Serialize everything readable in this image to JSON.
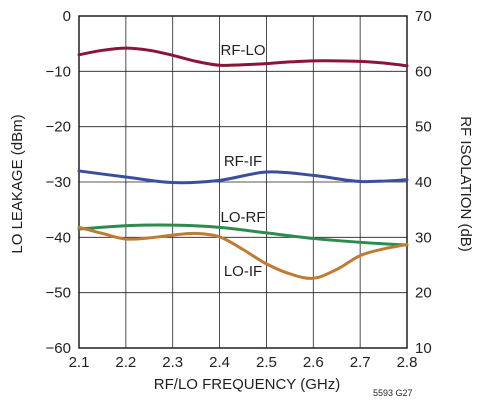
{
  "chart_data": {
    "type": "line",
    "title": "",
    "xlabel": "RF/LO FREQUENCY (GHz)",
    "ylabel_left": "LO LEAKAGE (dBm)",
    "ylabel_right": "RF ISOLATION (dB)",
    "figure_code": "5593 G27",
    "xlim": [
      2.1,
      2.8
    ],
    "x_ticks": [
      2.1,
      2.2,
      2.3,
      2.4,
      2.5,
      2.6,
      2.7,
      2.8
    ],
    "x_tick_labels": [
      "2.1",
      "2.2",
      "2.3",
      "2.4",
      "2.5",
      "2.6",
      "2.7",
      "2.8"
    ],
    "ylim_left": [
      -60,
      0
    ],
    "y_left_ticks": [
      0,
      -10,
      -20,
      -30,
      -40,
      -50,
      -60
    ],
    "y_left_tick_labels": [
      "0",
      "−10",
      "−20",
      "−30",
      "−40",
      "−50",
      "−60"
    ],
    "ylim_right": [
      10,
      70
    ],
    "y_right_ticks": [
      70,
      60,
      50,
      40,
      30,
      20,
      10
    ],
    "y_right_tick_labels": [
      "70",
      "60",
      "50",
      "40",
      "30",
      "20",
      "10"
    ],
    "grid": true,
    "series": [
      {
        "name": "RF-LO",
        "axis": "right",
        "color": "#8b1538",
        "x": [
          2.1,
          2.15,
          2.2,
          2.25,
          2.3,
          2.35,
          2.4,
          2.45,
          2.5,
          2.55,
          2.6,
          2.65,
          2.7,
          2.75,
          2.8
        ],
        "y": [
          63.0,
          63.8,
          64.2,
          63.8,
          62.9,
          61.8,
          61.1,
          61.2,
          61.4,
          61.7,
          61.9,
          61.9,
          61.8,
          61.5,
          61.0
        ]
      },
      {
        "name": "RF-IF",
        "axis": "right",
        "color": "#3a4ea0",
        "x": [
          2.1,
          2.2,
          2.3,
          2.4,
          2.5,
          2.6,
          2.7,
          2.8
        ],
        "y": [
          42.0,
          40.9,
          39.9,
          40.3,
          41.8,
          41.2,
          40.1,
          40.4
        ]
      },
      {
        "name": "LO-RF",
        "axis": "left",
        "color": "#2e8b4e",
        "x": [
          2.1,
          2.2,
          2.3,
          2.4,
          2.5,
          2.6,
          2.7,
          2.8
        ],
        "y": [
          -38.5,
          -37.9,
          -37.8,
          -38.2,
          -39.2,
          -40.2,
          -40.9,
          -41.4
        ]
      },
      {
        "name": "LO-IF",
        "axis": "left",
        "color": "#c07b33",
        "x": [
          2.1,
          2.15,
          2.2,
          2.25,
          2.3,
          2.35,
          2.4,
          2.45,
          2.5,
          2.55,
          2.6,
          2.65,
          2.7,
          2.75,
          2.8
        ],
        "y": [
          -38.2,
          -39.3,
          -40.3,
          -40.1,
          -39.6,
          -39.3,
          -39.9,
          -42.2,
          -44.8,
          -46.6,
          -47.4,
          -45.8,
          -43.3,
          -42.1,
          -41.3
        ]
      }
    ]
  }
}
